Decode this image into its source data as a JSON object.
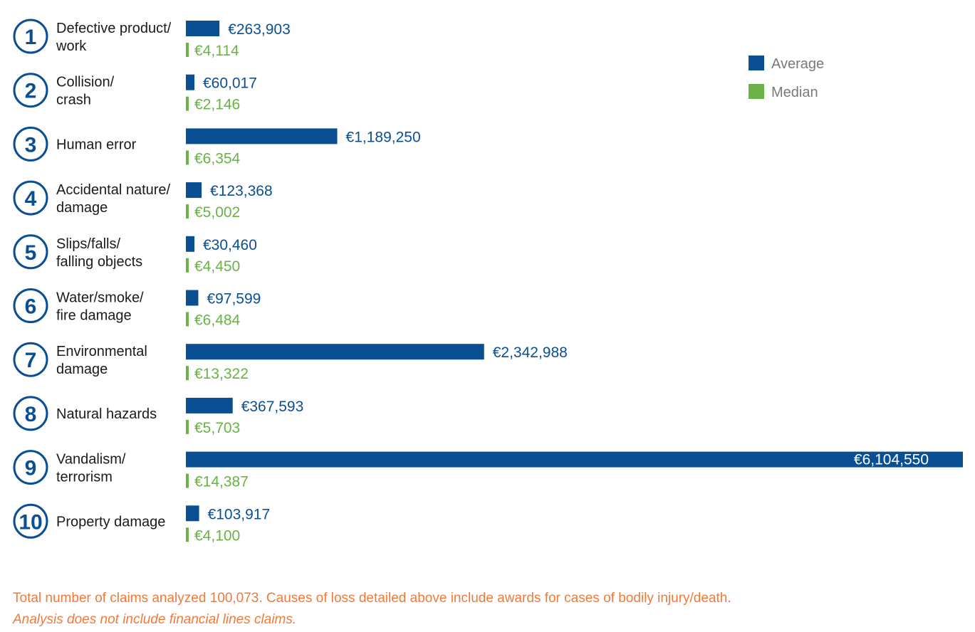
{
  "chart_data": {
    "type": "bar",
    "orientation": "horizontal",
    "currency": "€",
    "categories": [
      {
        "number": "1",
        "lines": [
          "Defective product/",
          "work"
        ]
      },
      {
        "number": "2",
        "lines": [
          "Collision/",
          "crash"
        ]
      },
      {
        "number": "3",
        "lines": [
          "Human error"
        ]
      },
      {
        "number": "4",
        "lines": [
          "Accidental nature/",
          "damage"
        ]
      },
      {
        "number": "5",
        "lines": [
          "Slips/falls/",
          "falling objects"
        ]
      },
      {
        "number": "6",
        "lines": [
          "Water/smoke/",
          "fire damage"
        ]
      },
      {
        "number": "7",
        "lines": [
          "Environmental",
          "damage"
        ]
      },
      {
        "number": "8",
        "lines": [
          "Natural hazards"
        ]
      },
      {
        "number": "9",
        "lines": [
          "Vandalism/",
          "terrorism"
        ]
      },
      {
        "number": "10",
        "lines": [
          "Property damage"
        ]
      }
    ],
    "series": [
      {
        "name": "Average",
        "color": "#0b4f93",
        "values": [
          263903,
          60017,
          1189250,
          123368,
          30460,
          97599,
          2342988,
          367593,
          6104550,
          103917
        ],
        "labels": [
          "€263,903",
          "€60,017",
          "€1,189,250",
          "€123,368",
          "€30,460",
          "€97,599",
          "€2,342,988",
          "€367,593",
          "€6,104,550",
          "€103,917"
        ]
      },
      {
        "name": "Median",
        "color": "#6ab245",
        "values": [
          4114,
          2146,
          6354,
          5002,
          4450,
          6484,
          13322,
          5703,
          14387,
          4100
        ],
        "labels": [
          "€4,114",
          "€2,146",
          "€6,354",
          "€5,002",
          "€4,450",
          "€6,484",
          "€13,322",
          "€5,703",
          "€14,387",
          "€4,100"
        ]
      }
    ],
    "xlim": [
      0,
      6104550
    ],
    "legend": {
      "position": "top-right",
      "entries": [
        "Average",
        "Median"
      ]
    }
  },
  "footnote": {
    "line1": "Total number of claims analyzed 100,073. Causes of loss detailed above include awards for cases of bodily injury/death.",
    "line2": "Analysis does not include financial lines claims."
  }
}
